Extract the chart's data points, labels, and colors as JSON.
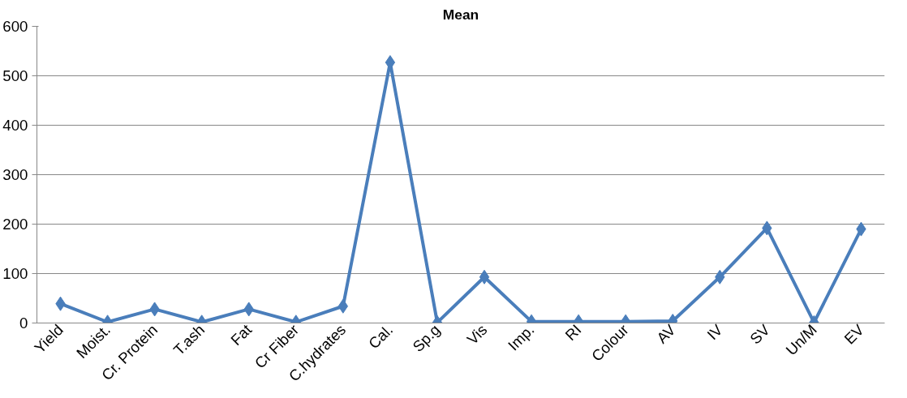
{
  "chart_data": {
    "type": "line",
    "title": "Mean",
    "categories": [
      "Yield",
      "Moist.",
      "Cr. Protein",
      "T.ash",
      "Fat",
      "Cr Fiber",
      "C.hydrates",
      "Cal.",
      "Sp.g",
      "Vis",
      "Imp.",
      "RI",
      "Colour",
      "AV",
      "IV",
      "SV",
      "Un/M",
      "EV"
    ],
    "series": [
      {
        "color": "#4a7ebb",
        "values": [
          39,
          2,
          28,
          2,
          28,
          2,
          34,
          527,
          1,
          93,
          3,
          3,
          3,
          4,
          93,
          192,
          1,
          190
        ]
      }
    ],
    "ylim": [
      0,
      600
    ],
    "yticks": [
      0,
      100,
      200,
      300,
      400,
      500,
      600
    ],
    "grid": "y",
    "marker": "diamond",
    "line_style": "solid"
  }
}
